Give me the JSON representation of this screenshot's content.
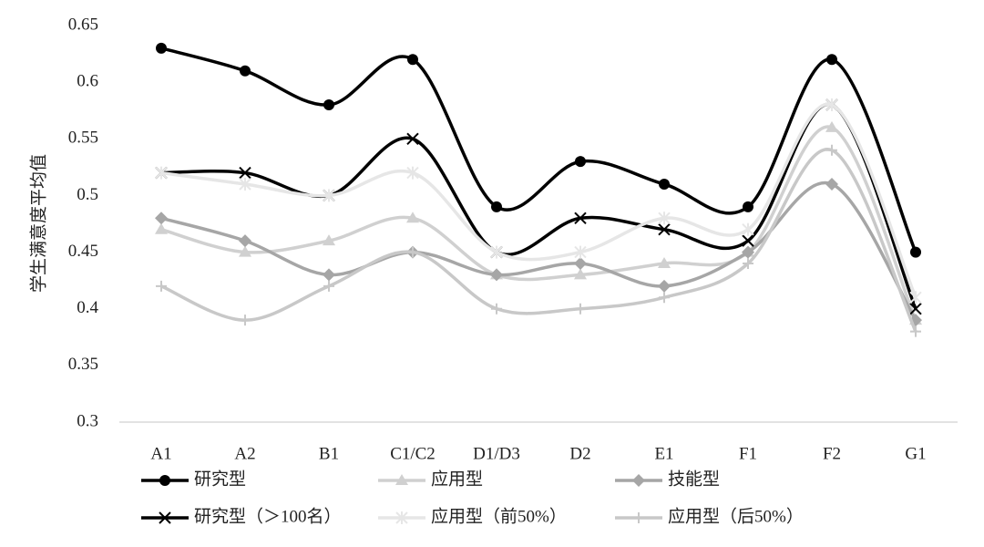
{
  "chart_data": {
    "type": "line",
    "y_label": "学生满意度平均值",
    "categories": [
      "A1",
      "A2",
      "B1",
      "C1/C2",
      "D1/D3",
      "D2",
      "E1",
      "F1",
      "F2",
      "G1"
    ],
    "ylim": [
      0.3,
      0.65
    ],
    "yticks": [
      0.3,
      0.35,
      0.4,
      0.45,
      0.5,
      0.55,
      0.6,
      0.65
    ],
    "legend": "bottom",
    "series": [
      {
        "name": "研究型",
        "color": "#000000",
        "marker": "circle",
        "values": [
          0.63,
          0.61,
          0.58,
          0.62,
          0.49,
          0.53,
          0.51,
          0.49,
          0.62,
          0.45
        ]
      },
      {
        "name": "应用型",
        "color": "#d0d0d0",
        "marker": "triangle",
        "values": [
          0.47,
          0.45,
          0.46,
          0.48,
          0.43,
          0.43,
          0.44,
          0.45,
          0.56,
          0.39
        ]
      },
      {
        "name": "技能型",
        "color": "#a6a6a6",
        "marker": "diamond",
        "values": [
          0.48,
          0.46,
          0.43,
          0.45,
          0.43,
          0.44,
          0.42,
          0.45,
          0.51,
          0.39
        ]
      },
      {
        "name": "研究型（＞100名）",
        "color": "#000000",
        "marker": "x",
        "values": [
          0.52,
          0.52,
          0.5,
          0.55,
          0.45,
          0.48,
          0.47,
          0.46,
          0.58,
          0.4
        ]
      },
      {
        "name": "应用型（前50%）",
        "color": "#e6e6e6",
        "marker": "star",
        "values": [
          0.52,
          0.51,
          0.5,
          0.52,
          0.45,
          0.45,
          0.48,
          0.47,
          0.58,
          0.41
        ]
      },
      {
        "name": "应用型（后50%）",
        "color": "#c8c8c8",
        "marker": "plus",
        "values": [
          0.42,
          0.39,
          0.42,
          0.45,
          0.4,
          0.4,
          0.41,
          0.44,
          0.54,
          0.38
        ]
      }
    ]
  }
}
